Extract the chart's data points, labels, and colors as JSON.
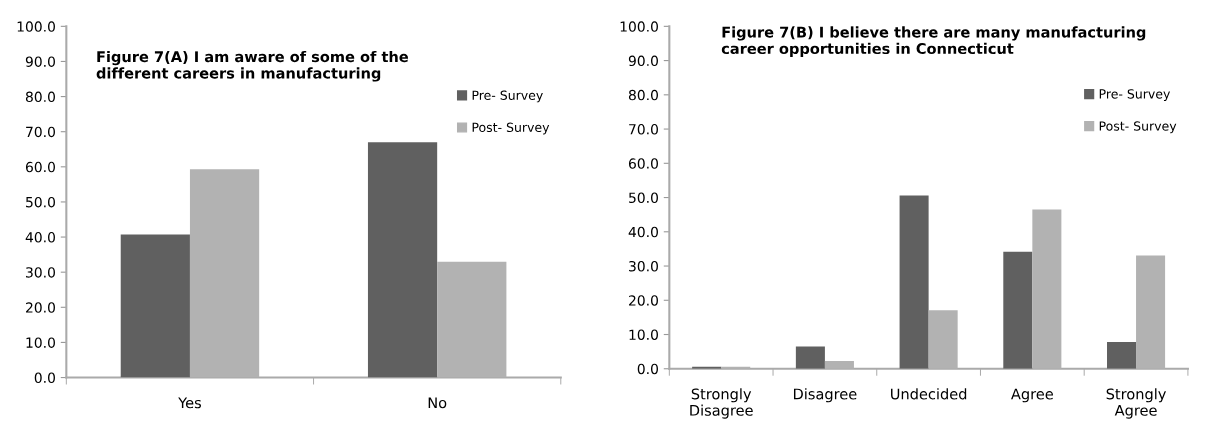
{
  "chart_data": [
    {
      "type": "bar",
      "title": "Figure 7(A) I am aware of some of the different careers in manufacturing",
      "categories": [
        "Yes",
        "No"
      ],
      "series": [
        {
          "name": "Pre- Survey",
          "color": "#606060",
          "values": [
            40.7,
            67.0
          ]
        },
        {
          "name": "Post- Survey",
          "color": "#b2b2b2",
          "values": [
            59.3,
            33.0
          ]
        }
      ],
      "ylim": [
        0,
        100
      ],
      "yticks": [
        {
          "value": 0,
          "label": "0.0"
        },
        {
          "value": 10,
          "label": "10.0"
        },
        {
          "value": 20,
          "label": "20.0"
        },
        {
          "value": 30,
          "label": "30.0"
        },
        {
          "value": 40,
          "label": "40.0"
        },
        {
          "value": 50,
          "label": "50.0"
        },
        {
          "value": 60,
          "label": "60.0"
        },
        {
          "value": 70,
          "label": "70.0"
        },
        {
          "value": 80,
          "label": "80.0"
        },
        {
          "value": 90,
          "label": "90.0"
        },
        {
          "value": 100,
          "label": "100.0"
        }
      ],
      "grid": false,
      "legend": "top right"
    },
    {
      "type": "bar",
      "title": "Figure 7(B) I believe there are many manufacturing career opportunities in Connecticut",
      "categories": [
        "Strongly\nDisagree",
        "Disagree",
        "Undecided",
        "Agree",
        "Strongly\nAgree"
      ],
      "series": [
        {
          "name": "Pre- Survey",
          "color": "#606060",
          "values": [
            0.6,
            6.5,
            50.6,
            34.2,
            7.8
          ]
        },
        {
          "name": "Post- Survey",
          "color": "#b2b2b2",
          "values": [
            0.6,
            2.3,
            17.1,
            46.5,
            33.1
          ]
        }
      ],
      "ylim": [
        0,
        100
      ],
      "yticks": [
        {
          "value": 0,
          "label": "0.0"
        },
        {
          "value": 10,
          "label": "10.0"
        },
        {
          "value": 20,
          "label": "20.0"
        },
        {
          "value": 30,
          "label": "30.0"
        },
        {
          "value": 40,
          "label": "40.0"
        },
        {
          "value": 50,
          "label": "50.0"
        },
        {
          "value": 60,
          "label": "60.0"
        },
        {
          "value": 70,
          "label": "70.0"
        },
        {
          "value": 80,
          "label": "80.0"
        },
        {
          "value": 90,
          "label": "90.0"
        },
        {
          "value": 100,
          "label": "100.0"
        }
      ],
      "grid": false,
      "legend": "top right"
    }
  ]
}
